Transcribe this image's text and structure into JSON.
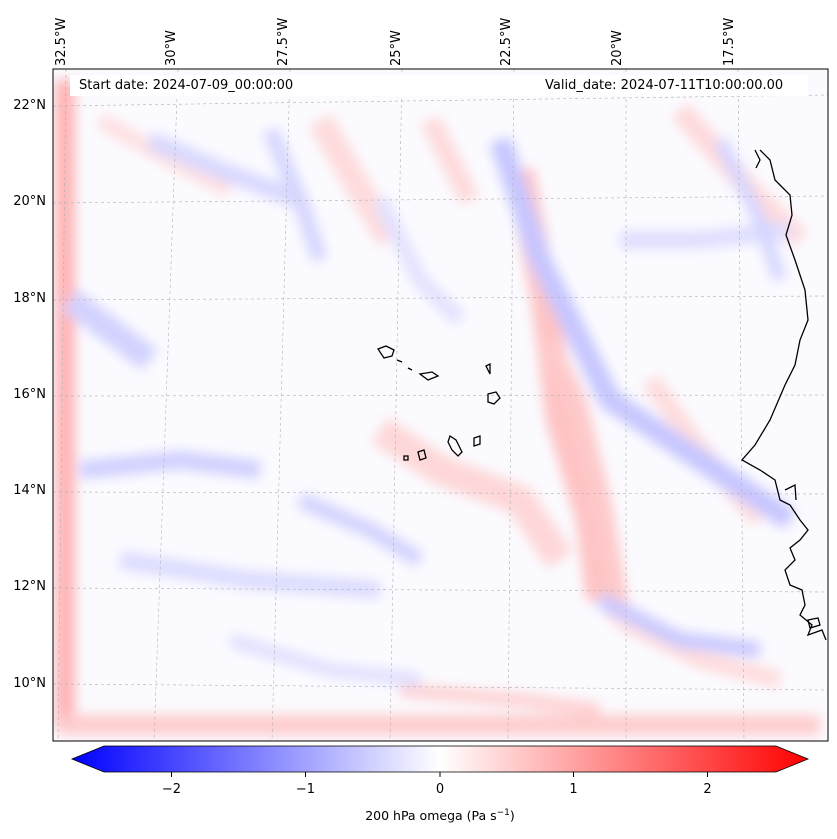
{
  "map": {
    "start_date_text": "Start date: 2024-07-09_00:00:00",
    "valid_date_text": "Valid_date: 2024-07-11T10:00:00.00",
    "lon_labels": [
      "32.5°W",
      "30°W",
      "27.5°W",
      "25°W",
      "22.5°W",
      "20°W",
      "17.5°W"
    ],
    "lat_labels": [
      "22°N",
      "20°N",
      "18°N",
      "16°N",
      "14°N",
      "12°N",
      "10°N"
    ],
    "colormap": "bwr",
    "colors": {
      "negative": "#0000ff",
      "zero": "#ffffff",
      "positive": "#ff0000",
      "coastline": "#000000",
      "gridline": "#b0b0b0"
    }
  },
  "colorbar": {
    "ticks": [
      "−2",
      "−1",
      "0",
      "1",
      "2"
    ],
    "tick_values": [
      -2,
      -1,
      0,
      1,
      2
    ],
    "range": [
      -2.7,
      2.7
    ],
    "extend": "both",
    "label_main": "200 hPa omega (Pa s",
    "label_sup": "−1",
    "label_end": ")"
  }
}
